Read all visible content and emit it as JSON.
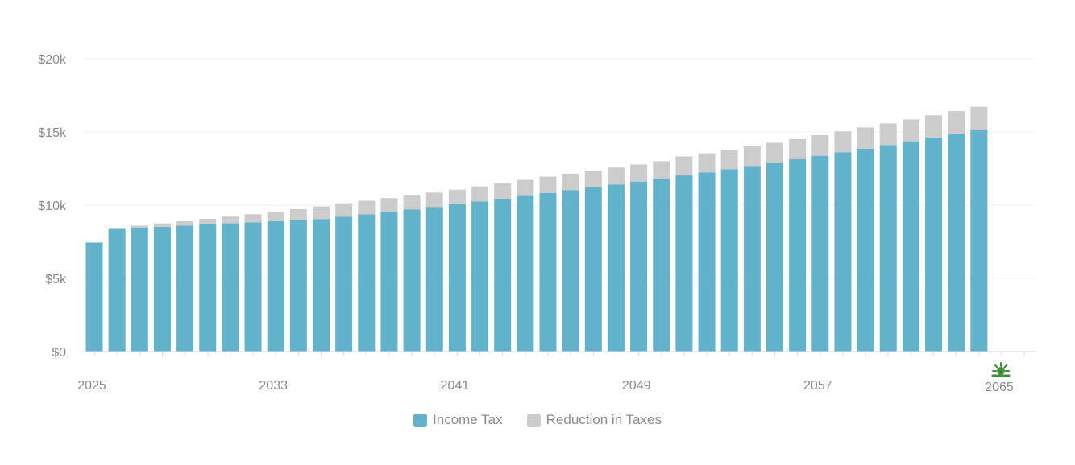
{
  "chart_data": {
    "type": "bar",
    "stacked": true,
    "title": "",
    "xlabel": "",
    "ylabel": "",
    "ylim": [
      0,
      20000
    ],
    "y_ticks": [
      {
        "value": 0,
        "label": "$0"
      },
      {
        "value": 5000,
        "label": "$5k"
      },
      {
        "value": 10000,
        "label": "$10k"
      },
      {
        "value": 15000,
        "label": "$15k"
      },
      {
        "value": 20000,
        "label": "$20k"
      }
    ],
    "x_range": [
      2025,
      2065
    ],
    "x_tick_labels": [
      {
        "year": 2025,
        "label": "2025"
      },
      {
        "year": 2033,
        "label": "2033"
      },
      {
        "year": 2041,
        "label": "2041"
      },
      {
        "year": 2049,
        "label": "2049"
      },
      {
        "year": 2057,
        "label": "2057"
      },
      {
        "year": 2065,
        "label": "2065"
      }
    ],
    "marker_icon": "sun-icon",
    "categories": [
      2025,
      2026,
      2027,
      2028,
      2029,
      2030,
      2031,
      2032,
      2033,
      2034,
      2035,
      2036,
      2037,
      2038,
      2039,
      2040,
      2041,
      2042,
      2043,
      2044,
      2045,
      2046,
      2047,
      2048,
      2049,
      2050,
      2051,
      2052,
      2053,
      2054,
      2055,
      2056,
      2057,
      2058,
      2059,
      2060,
      2061,
      2062,
      2063,
      2064
    ],
    "series": [
      {
        "name": "Income Tax",
        "color": "#62b2cb",
        "values": [
          7450,
          8380,
          8450,
          8520,
          8600,
          8680,
          8760,
          8830,
          8900,
          8970,
          9040,
          9210,
          9370,
          9540,
          9710,
          9880,
          10060,
          10250,
          10440,
          10640,
          10840,
          11030,
          11220,
          11410,
          11610,
          11810,
          12030,
          12240,
          12460,
          12680,
          12900,
          13130,
          13370,
          13610,
          13850,
          14100,
          14360,
          14620,
          14890,
          15160
        ]
      },
      {
        "name": "Reduction in Taxes",
        "color": "#cccccc",
        "values": [
          0,
          0,
          150,
          230,
          300,
          380,
          460,
          550,
          650,
          760,
          870,
          920,
          930,
          940,
          960,
          980,
          1000,
          1030,
          1060,
          1090,
          1110,
          1120,
          1140,
          1160,
          1170,
          1190,
          1300,
          1290,
          1310,
          1340,
          1360,
          1380,
          1410,
          1430,
          1460,
          1480,
          1500,
          1520,
          1540,
          1560
        ]
      }
    ]
  },
  "legend": {
    "income_tax_label": "Income Tax",
    "reduction_label": "Reduction in Taxes"
  }
}
